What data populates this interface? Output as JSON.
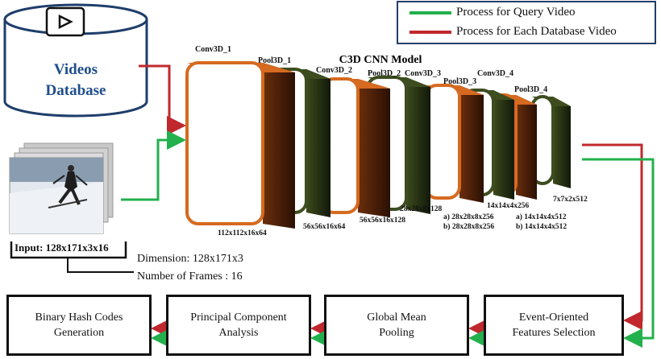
{
  "legend": {
    "query_label": "Process for Query Video",
    "database_label": "Process for Each Database Video",
    "query_color": "#22b14c",
    "database_color": "#c0282d"
  },
  "database": {
    "line1": "Videos",
    "line2": "Database",
    "icon": "play-icon"
  },
  "input": {
    "label": "Input: 128x171x3x16",
    "dimension": "Dimension: 128x171x3",
    "frames": "Number of Frames : 16"
  },
  "model": {
    "title": "C3D CNN Model",
    "layers": [
      {
        "name": "Conv3D_1",
        "output": "112x112x16x64",
        "kind": "conv"
      },
      {
        "name": "Pool3D_1",
        "output": "56x56x16x64",
        "kind": "pool"
      },
      {
        "name": "Conv3D_2",
        "output": "56x56x16x128",
        "kind": "conv"
      },
      {
        "name": "Pool3D_2",
        "output": "28x28x8x128",
        "kind": "pool"
      },
      {
        "name": "Conv3D_3",
        "output": "a) 28x28x8x256",
        "output2": "b) 28x28x8x256",
        "kind": "conv"
      },
      {
        "name": "Pool3D_3",
        "output": "14x14x4x256",
        "kind": "pool"
      },
      {
        "name": "Conv3D_4",
        "output": "a) 14x14x4x512",
        "output2": "b) 14x14x4x512",
        "kind": "conv"
      },
      {
        "name": "Pool3D_4",
        "output": "7x7x2x512",
        "kind": "pool"
      }
    ]
  },
  "pipeline": [
    {
      "line1": "Binary Hash Codes",
      "line2": "Generation"
    },
    {
      "line1": "Principal Component",
      "line2": "Analysis"
    },
    {
      "line1": "Global Mean",
      "line2": "Pooling"
    },
    {
      "line1": "Event-Oriented",
      "line2": "Features Selection"
    }
  ]
}
